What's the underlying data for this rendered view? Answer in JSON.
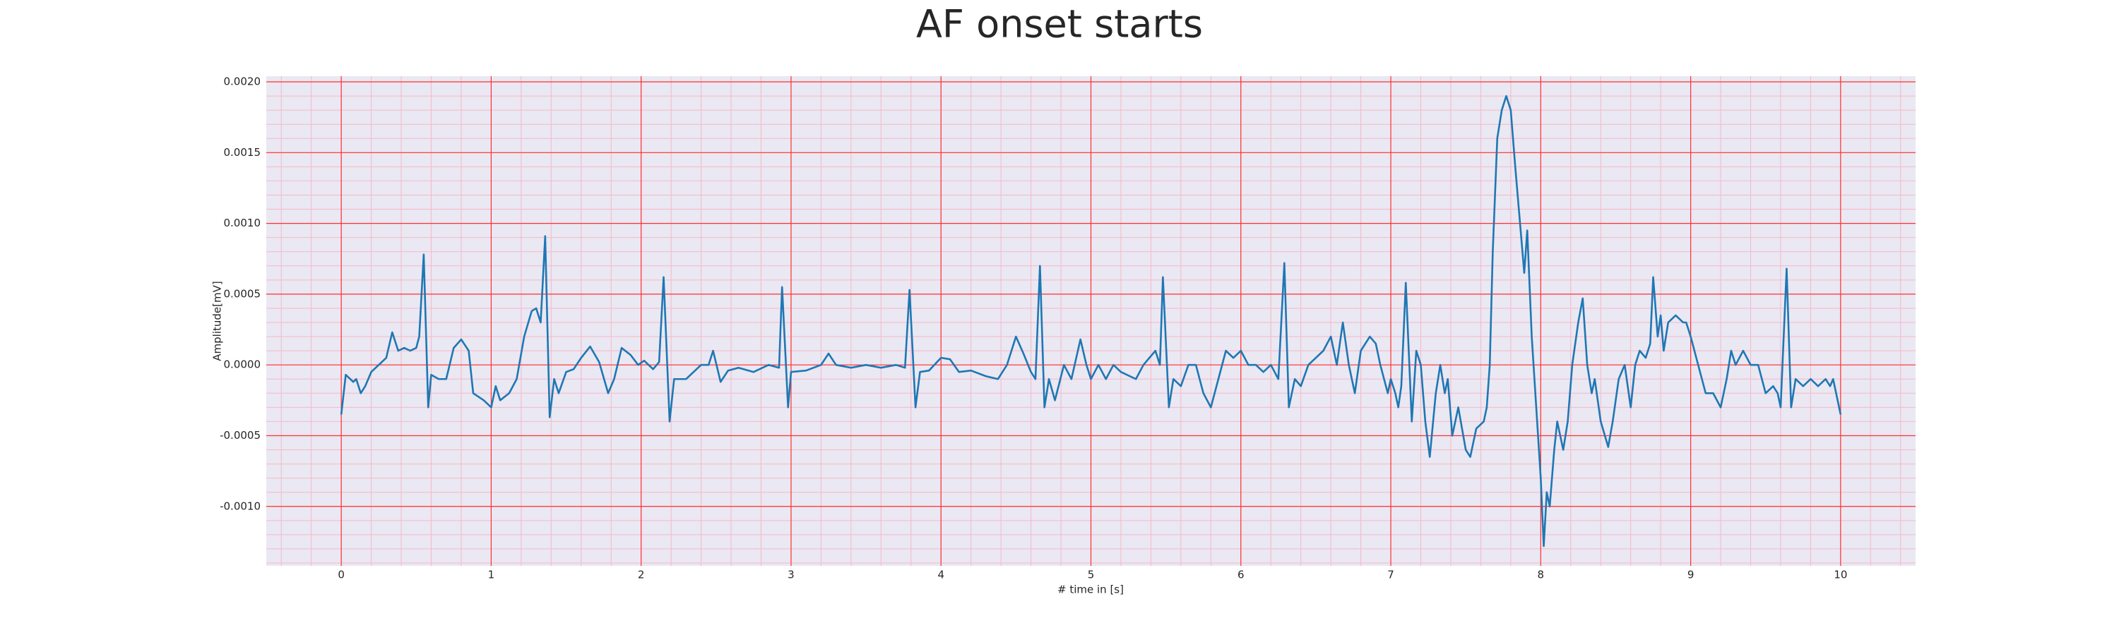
{
  "chart_data": {
    "type": "line",
    "title": "AF onset starts",
    "x_label": "# time in [s]",
    "y_label": "Amplitude[mV]",
    "xlim": [
      -0.5,
      10.5
    ],
    "ylim": [
      -0.00142,
      0.00204
    ],
    "xticks": [
      0,
      1,
      2,
      3,
      4,
      5,
      6,
      7,
      8,
      9,
      10
    ],
    "yticks": [
      {
        "value": -0.001,
        "label": "-0.0010"
      },
      {
        "value": -0.0005,
        "label": "-0.0005"
      },
      {
        "value": 0,
        "label": "0.0000"
      },
      {
        "value": 0.0005,
        "label": "0.0005"
      },
      {
        "value": 0.001,
        "label": "0.0010"
      },
      {
        "value": 0.0015,
        "label": "0.0015"
      },
      {
        "value": 0.002,
        "label": "0.0020"
      }
    ],
    "grid": true,
    "minor_grid_step": [
      0.2,
      0.0001
    ],
    "grid_color": "#ff3030",
    "minor_grid_color": "#f5b8c8",
    "background": "#eae8f2",
    "x": [
      0,
      0.03,
      0.06,
      0.08,
      0.1,
      0.13,
      0.16,
      0.2,
      0.25,
      0.3,
      0.34,
      0.38,
      0.42,
      0.46,
      0.5,
      0.52,
      0.55,
      0.58,
      0.6,
      0.65,
      0.7,
      0.75,
      0.8,
      0.85,
      0.88,
      0.95,
      1.0,
      1.03,
      1.06,
      1.12,
      1.17,
      1.22,
      1.27,
      1.3,
      1.33,
      1.36,
      1.39,
      1.42,
      1.45,
      1.5,
      1.55,
      1.6,
      1.66,
      1.72,
      1.78,
      1.82,
      1.87,
      1.93,
      1.98,
      2.02,
      2.08,
      2.12,
      2.15,
      2.19,
      2.22,
      2.3,
      2.35,
      2.4,
      2.45,
      2.48,
      2.53,
      2.58,
      2.65,
      2.75,
      2.85,
      2.92,
      2.94,
      2.98,
      3.0,
      3.1,
      3.2,
      3.25,
      3.3,
      3.4,
      3.5,
      3.6,
      3.7,
      3.76,
      3.79,
      3.83,
      3.86,
      3.92,
      4.0,
      4.06,
      4.12,
      4.2,
      4.3,
      4.38,
      4.44,
      4.5,
      4.55,
      4.6,
      4.63,
      4.66,
      4.69,
      4.72,
      4.76,
      4.82,
      4.87,
      4.93,
      4.97,
      5.0,
      5.05,
      5.1,
      5.15,
      5.2,
      5.3,
      5.35,
      5.43,
      5.46,
      5.48,
      5.52,
      5.55,
      5.6,
      5.65,
      5.7,
      5.75,
      5.8,
      5.85,
      5.9,
      5.95,
      6.0,
      6.05,
      6.1,
      6.15,
      6.2,
      6.25,
      6.29,
      6.32,
      6.36,
      6.4,
      6.45,
      6.5,
      6.55,
      6.6,
      6.64,
      6.68,
      6.72,
      6.76,
      6.8,
      6.86,
      6.9,
      6.93,
      6.98,
      7.0,
      7.03,
      7.05,
      7.07,
      7.1,
      7.14,
      7.17,
      7.2,
      7.23,
      7.26,
      7.3,
      7.33,
      7.36,
      7.38,
      7.41,
      7.45,
      7.5,
      7.53,
      7.57,
      7.62,
      7.64,
      7.66,
      7.68,
      7.71,
      7.74,
      7.77,
      7.8,
      7.83,
      7.87,
      7.89,
      7.91,
      7.94,
      7.97,
      8.0,
      8.02,
      8.04,
      8.06,
      8.09,
      8.11,
      8.15,
      8.18,
      8.21,
      8.25,
      8.28,
      8.31,
      8.34,
      8.36,
      8.4,
      8.45,
      8.48,
      8.52,
      8.56,
      8.6,
      8.63,
      8.66,
      8.7,
      8.73,
      8.75,
      8.78,
      8.8,
      8.82,
      8.85,
      8.9,
      8.95,
      8.97,
      9.0,
      9.05,
      9.1,
      9.15,
      9.2,
      9.24,
      9.27,
      9.3,
      9.35,
      9.4,
      9.45,
      9.5,
      9.55,
      9.58,
      9.6,
      9.64,
      9.67,
      9.7,
      9.75,
      9.8,
      9.85,
      9.9,
      9.93,
      9.95,
      9.97,
      10.0
    ],
    "series": [
      {
        "color": "#1f77b4",
        "values": [
          -0.00035,
          -7e-05,
          -0.0001,
          -0.00012,
          -0.0001,
          -0.0002,
          -0.00015,
          -5e-05,
          0,
          5e-05,
          0.00023,
          0.0001,
          0.00012,
          0.0001,
          0.00012,
          0.0002,
          0.00078,
          -0.0003,
          -7e-05,
          -0.0001,
          -0.0001,
          0.00012,
          0.00018,
          0.0001,
          -0.0002,
          -0.00025,
          -0.0003,
          -0.00015,
          -0.00025,
          -0.0002,
          -0.0001,
          0.0002,
          0.00038,
          0.0004,
          0.0003,
          0.00091,
          -0.00037,
          -0.0001,
          -0.0002,
          -5e-05,
          -3e-05,
          5e-05,
          0.00013,
          2e-05,
          -0.0002,
          -0.0001,
          0.00012,
          7e-05,
          0,
          3e-05,
          -3e-05,
          2e-05,
          0.00062,
          -0.0004,
          -0.0001,
          -0.0001,
          -5e-05,
          0,
          0,
          0.0001,
          -0.00012,
          -4e-05,
          -2e-05,
          -5e-05,
          0,
          -2e-05,
          0.00055,
          -0.0003,
          -5e-05,
          -4e-05,
          0,
          8e-05,
          0,
          -2e-05,
          0,
          -2e-05,
          0,
          -2e-05,
          0.00053,
          -0.0003,
          -5e-05,
          -4e-05,
          5e-05,
          4e-05,
          -5e-05,
          -4e-05,
          -8e-05,
          -0.0001,
          0,
          0.0002,
          8e-05,
          -5e-05,
          -0.0001,
          0.0007,
          -0.0003,
          -0.0001,
          -0.00025,
          0,
          -0.0001,
          0.00018,
          0,
          -0.0001,
          0,
          -0.0001,
          0,
          -5e-05,
          -0.0001,
          0,
          0.0001,
          0,
          0.00062,
          -0.0003,
          -0.0001,
          -0.00015,
          0,
          0,
          -0.0002,
          -0.0003,
          -0.0001,
          0.0001,
          5e-05,
          0.0001,
          0,
          0,
          -5e-05,
          0,
          -0.0001,
          0.00072,
          -0.0003,
          -0.0001,
          -0.00015,
          0,
          5e-05,
          0.0001,
          0.0002,
          0,
          0.0003,
          0,
          -0.0002,
          0.0001,
          0.0002,
          0.00015,
          0,
          -0.0002,
          -0.0001,
          -0.0002,
          -0.0003,
          -0.00015,
          0.00058,
          -0.0004,
          0.0001,
          0,
          -0.0004,
          -0.00065,
          -0.0002,
          0,
          -0.0002,
          -0.0001,
          -0.0005,
          -0.0003,
          -0.0006,
          -0.00065,
          -0.00045,
          -0.0004,
          -0.0003,
          0,
          0.0008,
          0.0016,
          0.0018,
          0.0019,
          0.0018,
          0.0014,
          0.0009,
          0.00065,
          0.00095,
          0.0002,
          -0.0003,
          -0.0008,
          -0.00128,
          -0.0009,
          -0.001,
          -0.0006,
          -0.0004,
          -0.0006,
          -0.0004,
          0,
          0.0003,
          0.00047,
          0,
          -0.0002,
          -0.0001,
          -0.0004,
          -0.00058,
          -0.0004,
          -0.0001,
          0,
          -0.0003,
          0,
          0.0001,
          5e-05,
          0.00015,
          0.00062,
          0.0002,
          0.00035,
          0.0001,
          0.0003,
          0.00035,
          0.0003,
          0.0003,
          0.0002,
          0,
          -0.0002,
          -0.0002,
          -0.0003,
          -0.0001,
          0.0001,
          0,
          0.0001,
          0,
          0,
          -0.0002,
          -0.00015,
          -0.0002,
          -0.0003,
          0.00068,
          -0.0003,
          -0.0001,
          -0.00015,
          -0.0001,
          -0.00015,
          -0.0001,
          -0.00015,
          -0.0001,
          -0.0002,
          -0.00035
        ]
      }
    ]
  }
}
